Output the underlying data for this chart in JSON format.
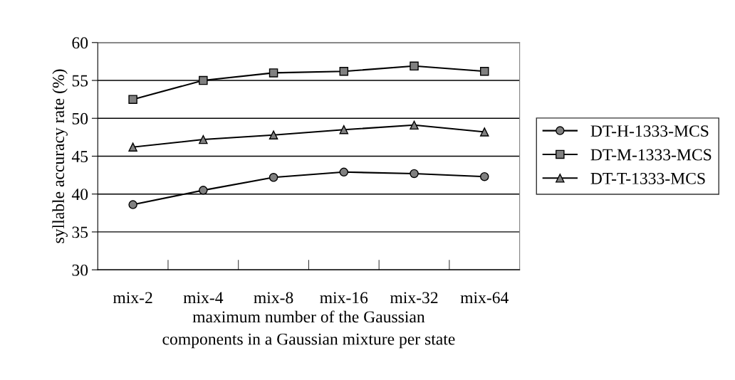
{
  "chart_data": {
    "type": "line",
    "xlabel": "maximum number of the Gaussian\ncomponents in a Gaussian mixture per state",
    "ylabel": "syllable accuracy rate (%)",
    "categories": [
      "mix-2",
      "mix-4",
      "mix-8",
      "mix-16",
      "mix-32",
      "mix-64"
    ],
    "series": [
      {
        "name": "DT-H-1333-MCS",
        "color": "#000000",
        "marker": "circle",
        "values": [
          38.6,
          40.5,
          42.2,
          42.9,
          42.7,
          42.3
        ]
      },
      {
        "name": "DT-M-1333-MCS",
        "color": "#000000",
        "marker": "square",
        "values": [
          52.5,
          55.0,
          56.0,
          56.2,
          56.9,
          56.2
        ]
      },
      {
        "name": "DT-T-1333-MCS",
        "color": "#000000",
        "marker": "triangle",
        "values": [
          46.2,
          47.2,
          47.8,
          48.5,
          49.1,
          48.2
        ]
      }
    ],
    "ylim": [
      30,
      60
    ],
    "yticks": [
      30,
      35,
      40,
      45,
      50,
      55,
      60
    ],
    "grid": "y",
    "legend": "right",
    "line_style": "solid"
  }
}
